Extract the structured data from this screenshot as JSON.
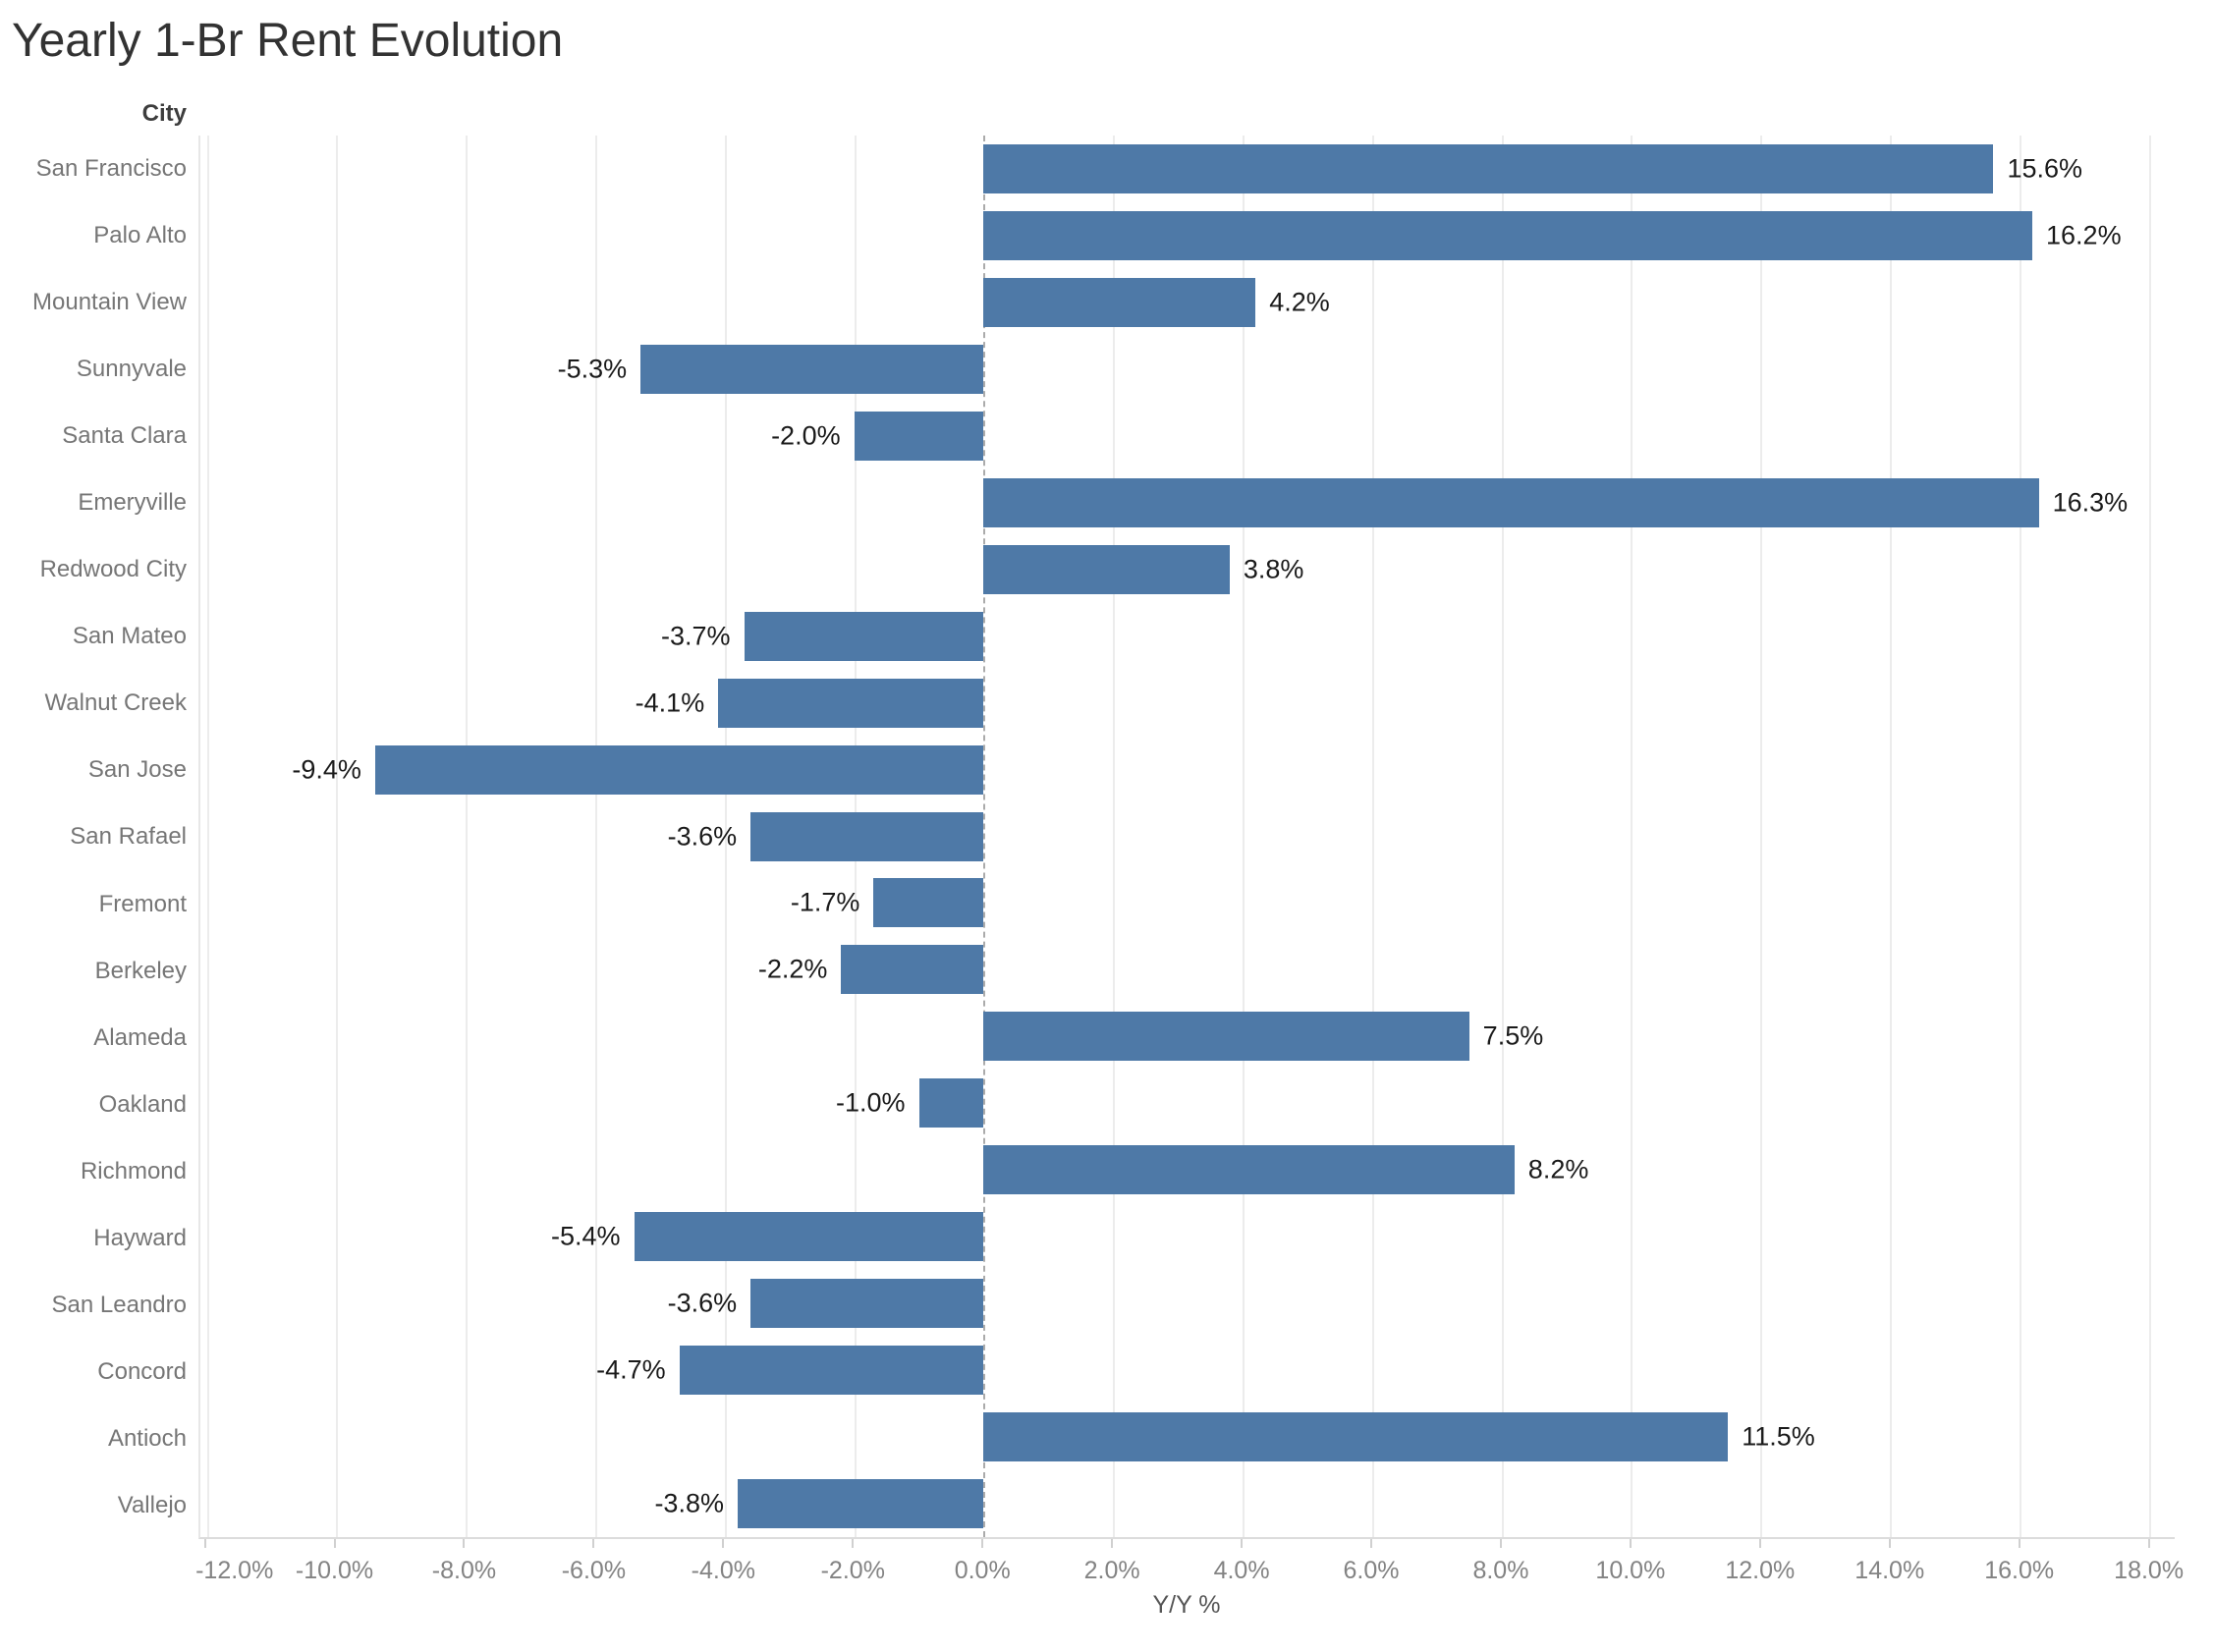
{
  "title": "Yearly 1-Br Rent Evolution",
  "chart_data": {
    "type": "bar",
    "orientation": "horizontal",
    "title": "Yearly 1-Br Rent Evolution",
    "category_header": "City",
    "xlabel": "Y/Y %",
    "categories": [
      "San Francisco",
      "Palo Alto",
      "Mountain View",
      "Sunnyvale",
      "Santa Clara",
      "Emeryville",
      "Redwood City",
      "San Mateo",
      "Walnut Creek",
      "San Jose",
      "San Rafael",
      "Fremont",
      "Berkeley",
      "Alameda",
      "Oakland",
      "Richmond",
      "Hayward",
      "San Leandro",
      "Concord",
      "Antioch",
      "Vallejo"
    ],
    "values": [
      15.6,
      16.2,
      4.2,
      -5.3,
      -2.0,
      16.3,
      3.8,
      -3.7,
      -4.1,
      -9.4,
      -3.6,
      -1.7,
      -2.2,
      7.5,
      -1.0,
      8.2,
      -5.4,
      -3.6,
      -4.7,
      11.5,
      -3.8
    ],
    "value_suffix": "%",
    "x_ticks": [
      -12,
      -10,
      -8,
      -6,
      -4,
      -2,
      0,
      2,
      4,
      6,
      8,
      10,
      12,
      14,
      16,
      18
    ],
    "x_range": [
      -12.1,
      18.4
    ],
    "grid": "vertical-only",
    "zero_line_style": "dashed",
    "legend": "none",
    "colors": {
      "bar": "#4e79a7",
      "title_text": "#323232",
      "category_text": "#767676",
      "category_header_text": "#3d3d3d",
      "value_label_text": "#1a1a1a",
      "tick_label_text": "#838383",
      "axis_title_text": "#555555",
      "gridline": "#ececec",
      "zero_line": "#ababab",
      "axis_line": "#dcdcdc"
    }
  }
}
